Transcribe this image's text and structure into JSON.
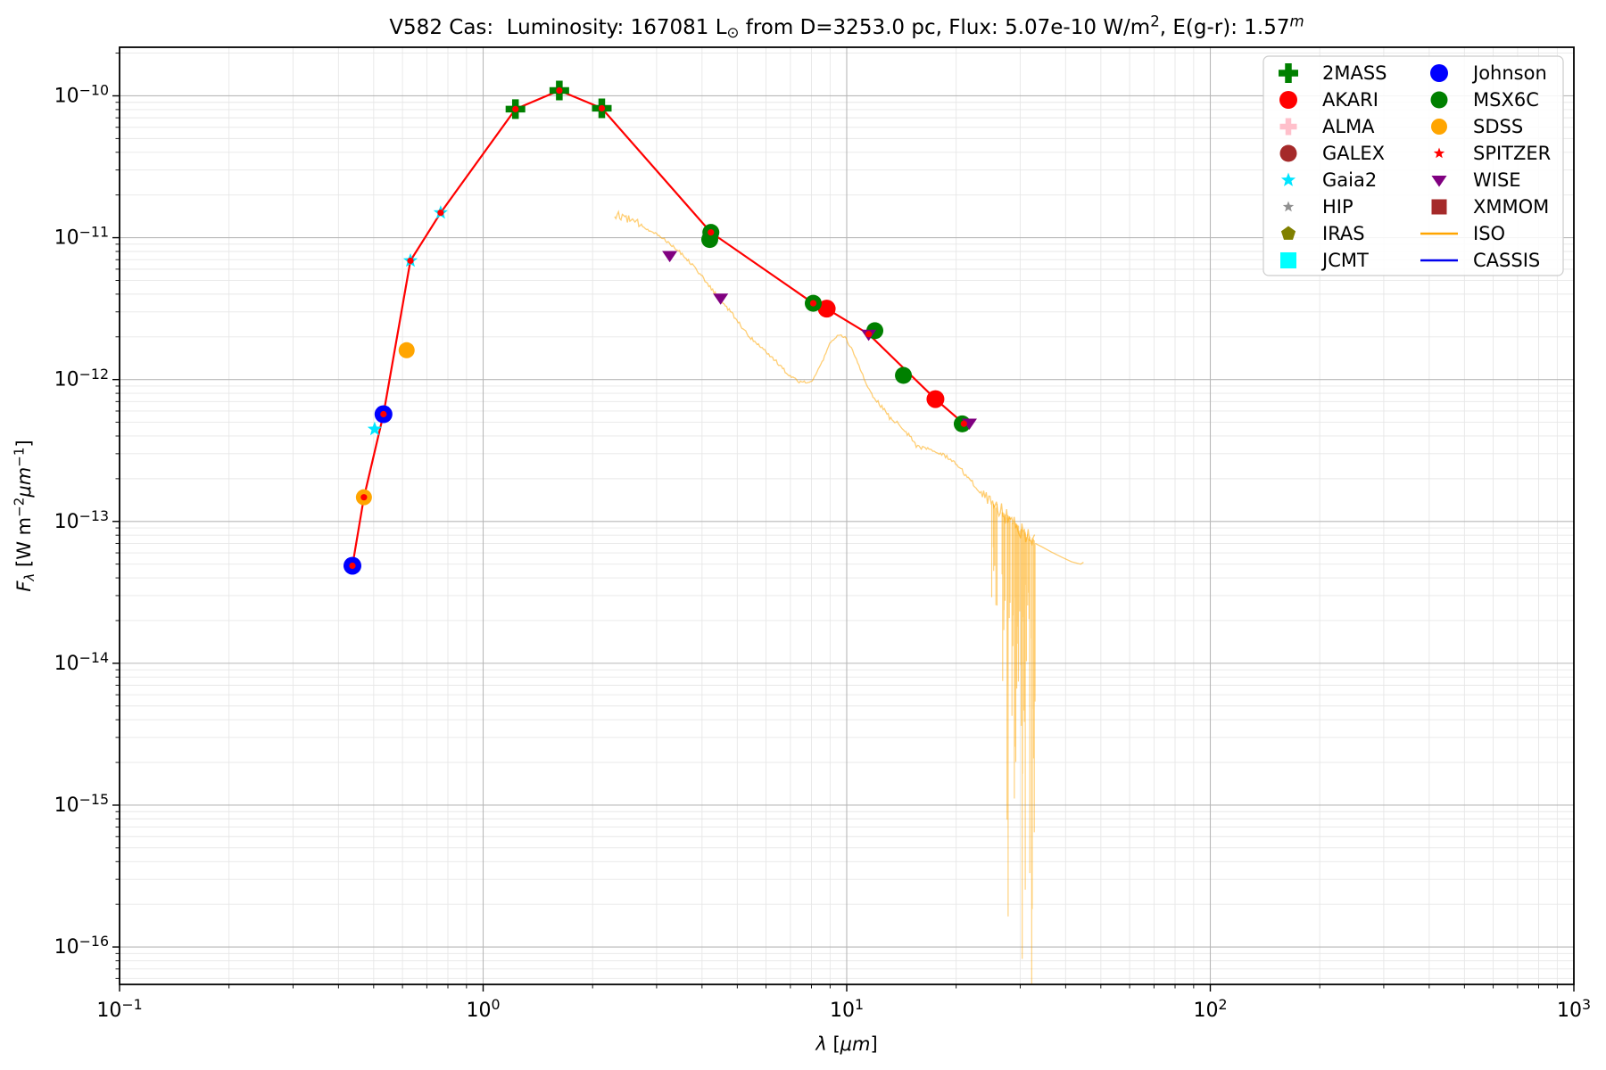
{
  "figure": {
    "background": "#ffffff"
  },
  "title_parts": [
    {
      "t": "V582 Cas:  Luminosity: 167081 L",
      "s": "n"
    },
    {
      "t": "⊙",
      "s": "sub"
    },
    {
      "t": " from D=3253.0 pc, Flux: 5.07e-10 W/m",
      "s": "n"
    },
    {
      "t": "2",
      "s": "sup"
    },
    {
      "t": ", E(g-r): 1.57",
      "s": "n"
    },
    {
      "t": "m",
      "s": "supi"
    }
  ],
  "chart_data": {
    "type": "scatter",
    "xscale": "log",
    "yscale": "log",
    "xlim": [
      0.1,
      1000
    ],
    "ylim": [
      5.45e-17,
      2.2e-10
    ],
    "grid": {
      "major": true,
      "minor": true,
      "major_color": "#b8b8b8",
      "minor_color": "#e7e7e7"
    },
    "xlabel_parts": [
      {
        "t": "λ",
        "s": "i"
      },
      {
        "t": " [",
        "s": "n"
      },
      {
        "t": "μm",
        "s": "i"
      },
      {
        "t": "]",
        "s": "n"
      }
    ],
    "ylabel_parts": [
      {
        "t": "F",
        "s": "i"
      },
      {
        "t": "λ",
        "s": "subi"
      },
      {
        "t": " [W m",
        "s": "n"
      },
      {
        "t": "−2",
        "s": "sup"
      },
      {
        "t": "μm",
        "s": "i"
      },
      {
        "t": "−1",
        "s": "sup"
      },
      {
        "t": "]",
        "s": "n"
      }
    ],
    "x_tick_exponents": [
      -1,
      0,
      1,
      2,
      3
    ],
    "y_tick_exponents": [
      -10,
      -11,
      -12,
      -13,
      -14,
      -15,
      -16
    ],
    "legend_position": "upper right",
    "series": [
      {
        "name": "2MASS",
        "marker": "plus",
        "color": "#008000",
        "size": 22,
        "points": [
          [
            1.227,
            8.06e-11
          ],
          [
            1.62,
            1.09e-10
          ],
          [
            2.12,
            8.17e-11
          ]
        ]
      },
      {
        "name": "AKARI",
        "marker": "circle",
        "color": "#ff0000",
        "size": 20,
        "points": [
          [
            8.81,
            3.16e-12
          ],
          [
            17.54,
            7.28e-13
          ]
        ]
      },
      {
        "name": "ALMA",
        "marker": "plus",
        "color": "#ffc0cb",
        "size": 19,
        "points": []
      },
      {
        "name": "GALEX",
        "marker": "circle",
        "color": "#a52a2a",
        "size": 19,
        "points": []
      },
      {
        "name": "Gaia2",
        "marker": "star",
        "color": "#00e5ff",
        "size": 17,
        "points": [
          [
            0.503,
            4.47e-13
          ],
          [
            0.631,
            6.88e-12
          ],
          [
            0.764,
            1.5e-11
          ]
        ]
      },
      {
        "name": "HIP",
        "marker": "star",
        "color": "#909090",
        "size": 13,
        "points": []
      },
      {
        "name": "IRAS",
        "marker": "pentagon",
        "color": "#808000",
        "size": 17,
        "points": []
      },
      {
        "name": "JCMT",
        "marker": "square",
        "color": "#00ffff",
        "size": 18,
        "points": []
      },
      {
        "name": "Johnson",
        "marker": "circle",
        "color": "#0000ff",
        "size": 20,
        "points": [
          [
            0.437,
            4.87e-14
          ],
          [
            0.532,
            5.7e-13
          ]
        ]
      },
      {
        "name": "MSX6C",
        "marker": "circle",
        "color": "#008000",
        "size": 19,
        "points": [
          [
            4.2,
            9.71e-12
          ],
          [
            4.23,
            1.09e-11
          ],
          [
            8.09,
            3.45e-12
          ],
          [
            11.95,
            2.21e-12
          ],
          [
            14.32,
            1.07e-12
          ],
          [
            20.78,
            4.87e-13
          ]
        ]
      },
      {
        "name": "SDSS",
        "marker": "circle",
        "color": "#ffa500",
        "size": 18,
        "points": [
          [
            0.47,
            1.48e-13
          ],
          [
            0.616,
            1.61e-12
          ]
        ]
      },
      {
        "name": "SPITZER",
        "marker": "star",
        "color": "#ff0000",
        "size": 13,
        "points": []
      },
      {
        "name": "WISE",
        "marker": "triangle-down",
        "color": "#800080",
        "size": 18,
        "points": [
          [
            3.26,
            7.5e-12
          ],
          [
            4.5,
            3.76e-12
          ],
          [
            11.49,
            2.09e-12
          ],
          [
            21.74,
            4.94e-13
          ]
        ]
      },
      {
        "name": "XMMOM",
        "marker": "square",
        "color": "#a52a2a",
        "size": 17,
        "points": []
      },
      {
        "name": "ISO",
        "marker": "line",
        "color": "#ffa500",
        "size": 0,
        "points": []
      },
      {
        "name": "CASSIS",
        "marker": "line",
        "color": "#0000ee",
        "size": 0,
        "points": []
      }
    ],
    "sed_line": {
      "color": "#ff0000",
      "width": 2.2,
      "dot_radius": 3.6,
      "points": [
        [
          0.437,
          4.87e-14
        ],
        [
          0.47,
          1.48e-13
        ],
        [
          0.532,
          5.7e-13
        ],
        [
          0.631,
          6.88e-12
        ],
        [
          0.764,
          1.5e-11
        ],
        [
          1.227,
          8.06e-11
        ],
        [
          1.62,
          1.09e-10
        ],
        [
          2.12,
          8.17e-11
        ],
        [
          4.23,
          1.09e-11
        ],
        [
          8.09,
          3.45e-12
        ],
        [
          8.81,
          3.16e-12
        ],
        [
          11.49,
          2.09e-12
        ],
        [
          17.54,
          7.28e-13
        ],
        [
          21.0,
          4.88e-13
        ]
      ]
    },
    "iso_spectrum": {
      "color": "#ffa500",
      "opacity": 0.55,
      "width": 1.3,
      "seed": 12,
      "anchors": [
        [
          2.3,
          1.45e-11
        ],
        [
          2.42,
          1.42e-11
        ],
        [
          2.56,
          1.32e-11
        ],
        [
          2.72,
          1.22e-11
        ],
        [
          2.96,
          1.09e-11
        ],
        [
          3.22,
          9.4e-12
        ],
        [
          3.5,
          7.8e-12
        ],
        [
          3.81,
          6.3e-12
        ],
        [
          4.14,
          4.7e-12
        ],
        [
          4.52,
          3.6e-12
        ],
        [
          4.92,
          2.75e-12
        ],
        [
          5.36,
          2.05e-12
        ],
        [
          5.87,
          1.66e-12
        ],
        [
          6.3,
          1.4e-12
        ],
        [
          6.65,
          1.2e-12
        ],
        [
          7.05,
          1.05e-12
        ],
        [
          7.4,
          9.7e-13
        ],
        [
          7.95,
          9.6e-13
        ],
        [
          8.25,
          1.1e-12
        ],
        [
          8.75,
          1.5e-12
        ],
        [
          9.0,
          1.85e-12
        ],
        [
          9.5,
          2.05e-12
        ],
        [
          9.9,
          1.98e-12
        ],
        [
          10.4,
          1.6e-12
        ],
        [
          11.0,
          1.1e-12
        ],
        [
          11.55,
          8.3e-13
        ],
        [
          12.2,
          6.9e-13
        ],
        [
          13.2,
          5.3e-13
        ],
        [
          14.3,
          4.6e-13
        ],
        [
          15.6,
          3.4e-13
        ],
        [
          17.0,
          3.2e-13
        ],
        [
          18.6,
          2.9e-13
        ],
        [
          20.2,
          2.45e-13
        ],
        [
          21.8,
          1.98e-13
        ],
        [
          23.8,
          1.53e-13
        ],
        [
          25.5,
          1.33e-13
        ],
        [
          27.0,
          1.15e-13
        ],
        [
          28.5,
          1e-13
        ],
        [
          30.0,
          8.8e-14
        ],
        [
          31.5,
          7.8e-14
        ],
        [
          33.0,
          7e-14
        ]
      ],
      "tail": [
        [
          33.0,
          7e-14
        ],
        [
          34.5,
          6.6e-14
        ],
        [
          36.5,
          6.1e-14
        ],
        [
          39.0,
          5.6e-14
        ],
        [
          41.5,
          5.2e-14
        ],
        [
          44.0,
          5e-14
        ],
        [
          44.8,
          5.15e-14
        ]
      ],
      "noise_zones": [
        {
          "to": 2.7,
          "amp": 0.03
        },
        {
          "to": 7.0,
          "amp": 0.013
        },
        {
          "to": 10.5,
          "amp": 0.01
        },
        {
          "to": 23.0,
          "amp": 0.016
        },
        {
          "to": 26.0,
          "amp": 0.04
        },
        {
          "to": 33.5,
          "amp": 0.065
        }
      ],
      "spike_groups": [
        {
          "range": [
            25.0,
            26.5
          ],
          "count": 6,
          "min": 0.2,
          "max": 0.9,
          "pow": 1.0
        },
        {
          "range": [
            26.5,
            33.0
          ],
          "count": 26,
          "min": 0.2,
          "max": 1.3,
          "pow": 1.2
        },
        {
          "range": [
            27.5,
            32.8
          ],
          "count": 34,
          "min": 0.6,
          "max": 3.2,
          "pow": 1.6
        }
      ]
    }
  }
}
